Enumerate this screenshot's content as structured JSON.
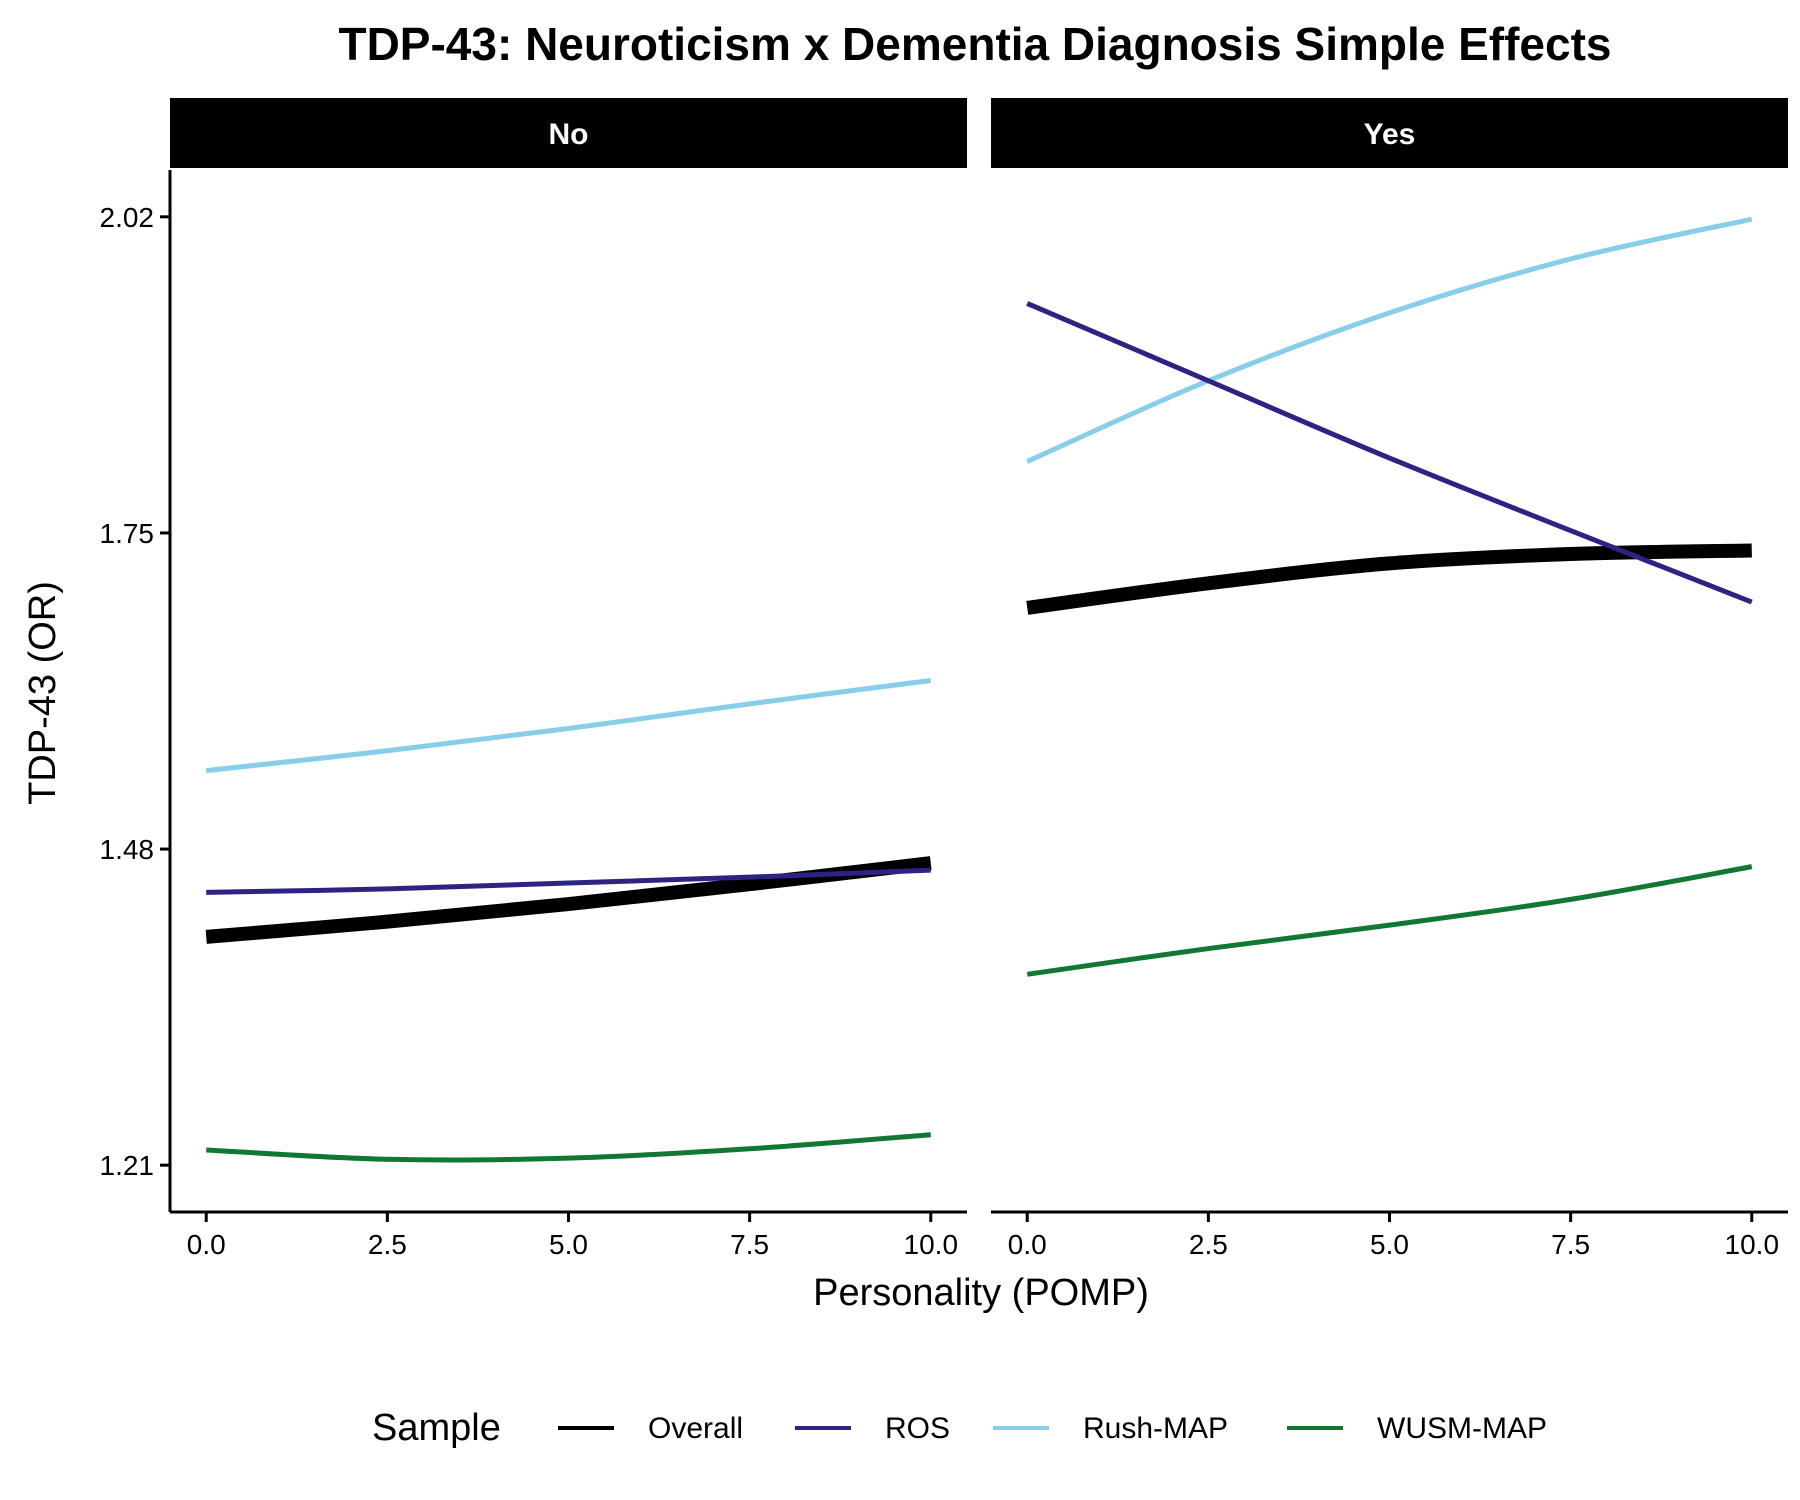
{
  "chart_data": {
    "type": "line",
    "title": "TDP-43: Neuroticism x Dementia Diagnosis Simple Effects",
    "xlabel": "Personality (POMP)",
    "ylabel": "TDP-43 (OR)",
    "xlim": [
      -0.5,
      10.5
    ],
    "ylim": [
      1.17,
      2.06
    ],
    "x_ticks": [
      0,
      2.5,
      5,
      7.5,
      10
    ],
    "x_tick_labels": [
      "0.0",
      "2.5",
      "5.0",
      "7.5",
      "10.0"
    ],
    "y_ticks": [
      1.21,
      1.48,
      1.75,
      2.02
    ],
    "y_tick_labels": [
      "1.21",
      "1.48",
      "1.75",
      "2.02"
    ],
    "grid": false,
    "legend_position": "bottom",
    "legend_title": "Sample",
    "x": [
      0,
      2.5,
      5,
      7.5,
      10
    ],
    "panels": [
      {
        "label": "No",
        "series": [
          {
            "name": "Overall",
            "color": "#000000",
            "values": [
              1.405,
              1.418,
              1.433,
              1.45,
              1.468
            ]
          },
          {
            "name": "ROS",
            "color": "#2D2383",
            "values": [
              1.443,
              1.446,
              1.451,
              1.456,
              1.462
            ]
          },
          {
            "name": "Rush-MAP",
            "color": "#87CEEB",
            "values": [
              1.547,
              1.564,
              1.583,
              1.604,
              1.624
            ]
          },
          {
            "name": "WUSM-MAP",
            "color": "#117733",
            "values": [
              1.223,
              1.215,
              1.216,
              1.224,
              1.236
            ]
          }
        ]
      },
      {
        "label": "Yes",
        "series": [
          {
            "name": "Overall",
            "color": "#000000",
            "values": [
              1.686,
              1.707,
              1.724,
              1.732,
              1.735
            ]
          },
          {
            "name": "ROS",
            "color": "#2D2383",
            "values": [
              1.946,
              1.88,
              1.814,
              1.752,
              1.691
            ]
          },
          {
            "name": "Rush-MAP",
            "color": "#87CEEB",
            "values": [
              1.811,
              1.88,
              1.938,
              1.984,
              2.018
            ]
          },
          {
            "name": "WUSM-MAP",
            "color": "#117733",
            "values": [
              1.373,
              1.395,
              1.415,
              1.437,
              1.465
            ]
          }
        ]
      }
    ]
  }
}
